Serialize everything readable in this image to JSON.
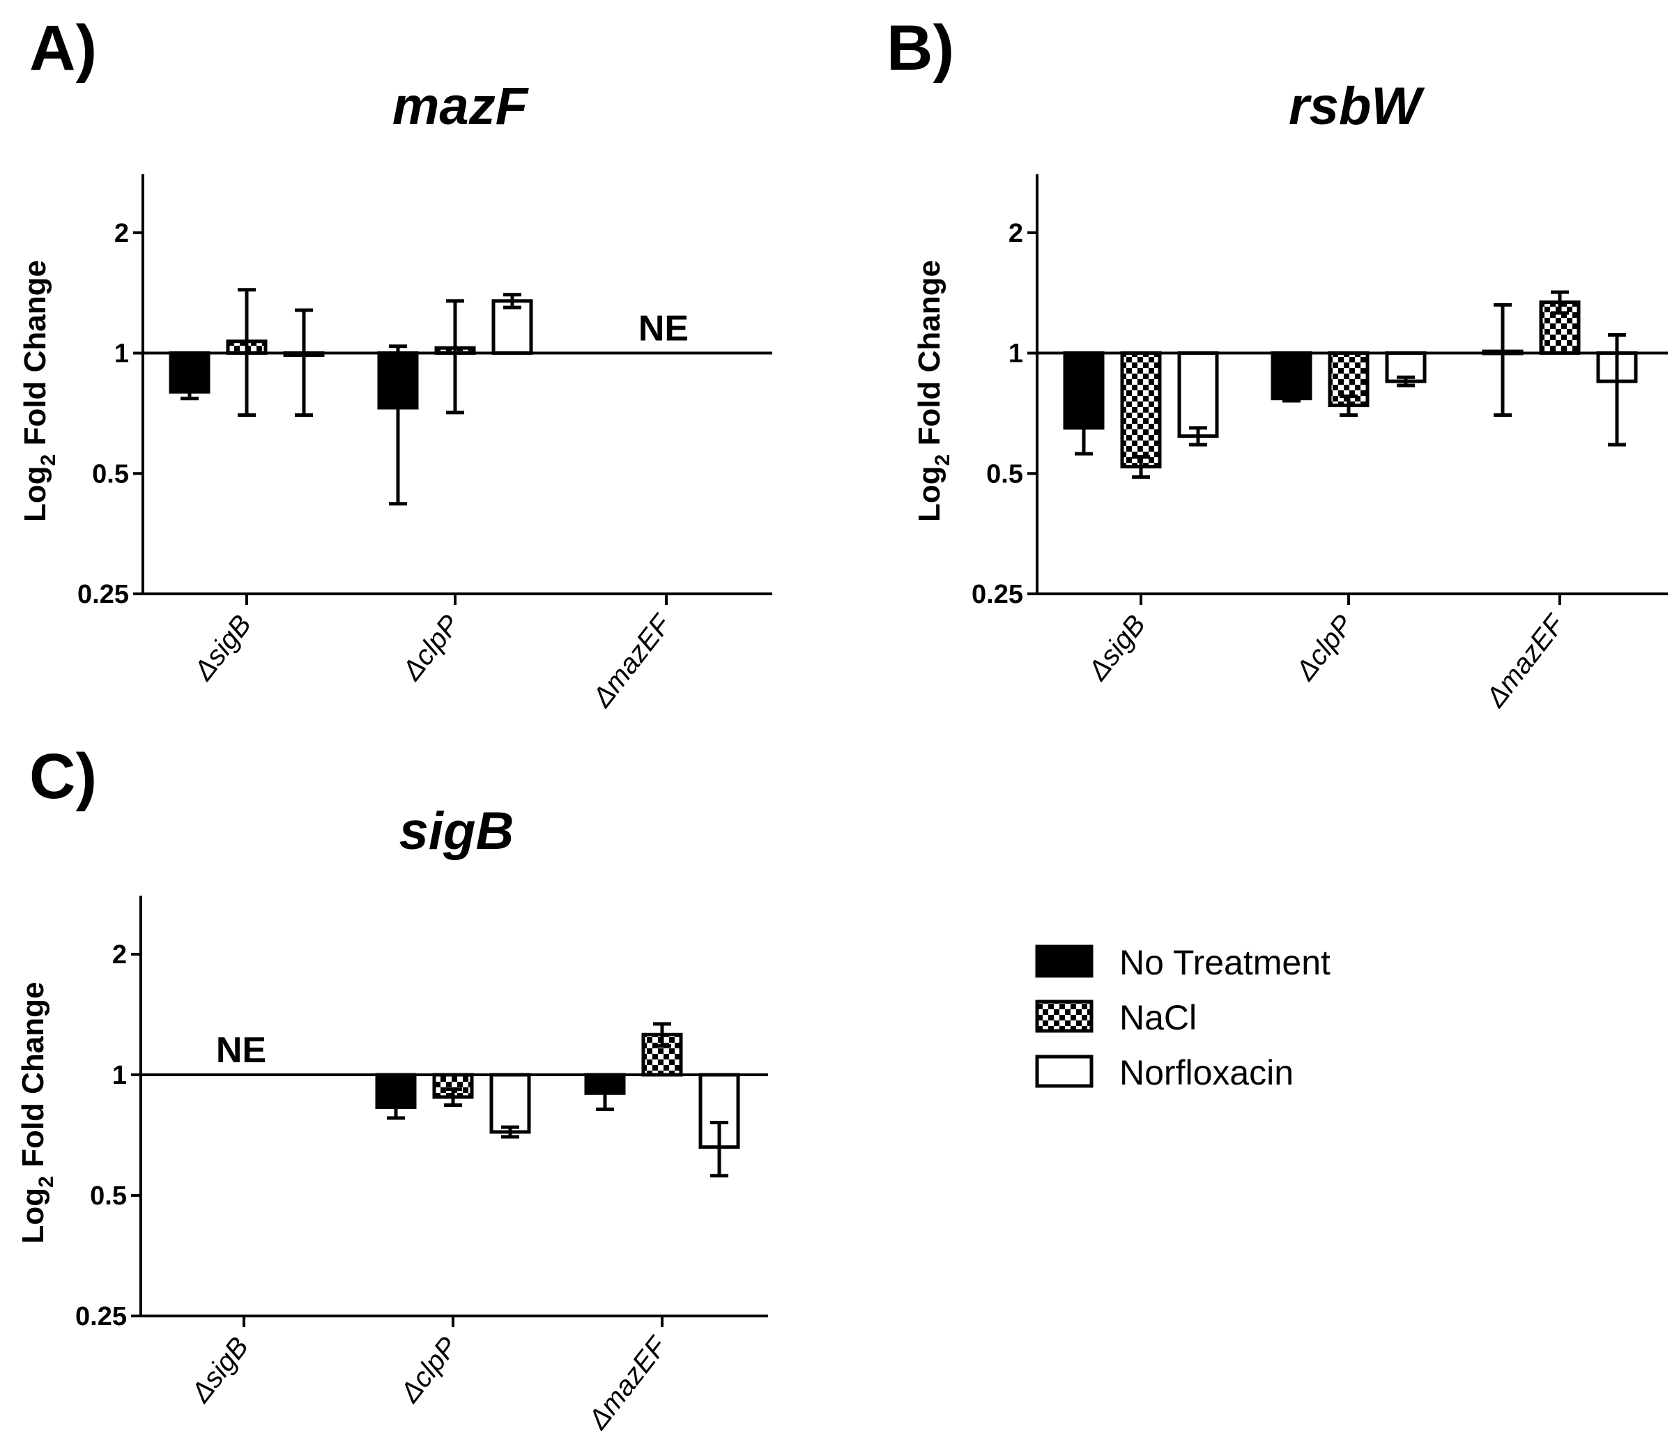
{
  "figure": {
    "description_labels": [
      "A)",
      "B)",
      "C)"
    ]
  },
  "legend": {
    "entries": [
      {
        "name": "No Treatment",
        "pattern": "solid"
      },
      {
        "name": "NaCl",
        "pattern": "checker"
      },
      {
        "name": "Norfloxacin",
        "pattern": "open"
      }
    ]
  },
  "chart_data": [
    {
      "panel": "A)",
      "type": "bar",
      "title": "mazF",
      "ylabel_main": "Log",
      "ylabel_sub": "2",
      "ylabel_rest": " Fold Change",
      "yscale": "log2",
      "ylim": [
        0.25,
        2.8
      ],
      "yticks": [
        0.25,
        0.5,
        1,
        2
      ],
      "ytick_labels": [
        "0.25",
        "0.5",
        "1",
        "2"
      ],
      "baseline": 1,
      "categories": [
        "ΔsigB",
        "ΔclpP",
        "ΔmazEF"
      ],
      "series": [
        {
          "name": "No Treatment",
          "values": [
            0.8,
            0.73,
            null
          ],
          "errors": [
            0.03,
            0.31,
            null
          ]
        },
        {
          "name": "NaCl",
          "values": [
            1.07,
            1.03,
            null
          ],
          "errors": [
            0.37,
            0.32,
            null
          ]
        },
        {
          "name": "Norfloxacin",
          "values": [
            0.99,
            1.35,
            null
          ],
          "errors": [
            0.29,
            0.05,
            null
          ]
        }
      ],
      "annotations": [
        {
          "category": 2,
          "text": "NE"
        }
      ]
    },
    {
      "panel": "B)",
      "type": "bar",
      "title": "rsbW",
      "ylabel_main": "Log",
      "ylabel_sub": "2",
      "ylabel_rest": " Fold Change",
      "yscale": "log2",
      "ylim": [
        0.25,
        2.8
      ],
      "yticks": [
        0.25,
        0.5,
        1,
        2
      ],
      "ytick_labels": [
        "0.25",
        "0.5",
        "1",
        "2"
      ],
      "baseline": 1,
      "categories": [
        "ΔsigB",
        "ΔclpP",
        "ΔmazEF"
      ],
      "series": [
        {
          "name": "No Treatment",
          "values": [
            0.65,
            0.77,
            1.01
          ],
          "errors": [
            0.09,
            0.01,
            0.31
          ]
        },
        {
          "name": "NaCl",
          "values": [
            0.52,
            0.74,
            1.34
          ],
          "errors": [
            0.03,
            0.04,
            0.08
          ]
        },
        {
          "name": "Norfloxacin",
          "values": [
            0.62,
            0.85,
            0.85
          ],
          "errors": [
            0.03,
            0.02,
            0.26
          ]
        }
      ],
      "annotations": []
    },
    {
      "panel": "C)",
      "type": "bar",
      "title": "sigB",
      "ylabel_main": "Log",
      "ylabel_sub": "2",
      "ylabel_rest": " Fold Change",
      "yscale": "log2",
      "ylim": [
        0.25,
        2.8
      ],
      "yticks": [
        0.25,
        0.5,
        1,
        2
      ],
      "ytick_labels": [
        "0.25",
        "0.5",
        "1",
        "2"
      ],
      "baseline": 1,
      "categories": [
        "ΔsigB",
        "ΔclpP",
        "ΔmazEF"
      ],
      "series": [
        {
          "name": "No Treatment",
          "values": [
            null,
            0.83,
            0.9
          ],
          "errors": [
            null,
            0.05,
            0.08
          ]
        },
        {
          "name": "NaCl",
          "values": [
            null,
            0.88,
            1.26
          ],
          "errors": [
            null,
            0.04,
            0.08
          ]
        },
        {
          "name": "Norfloxacin",
          "values": [
            null,
            0.72,
            0.66
          ],
          "errors": [
            null,
            0.02,
            0.1
          ]
        }
      ],
      "annotations": [
        {
          "category": 0,
          "text": "NE"
        }
      ]
    }
  ]
}
